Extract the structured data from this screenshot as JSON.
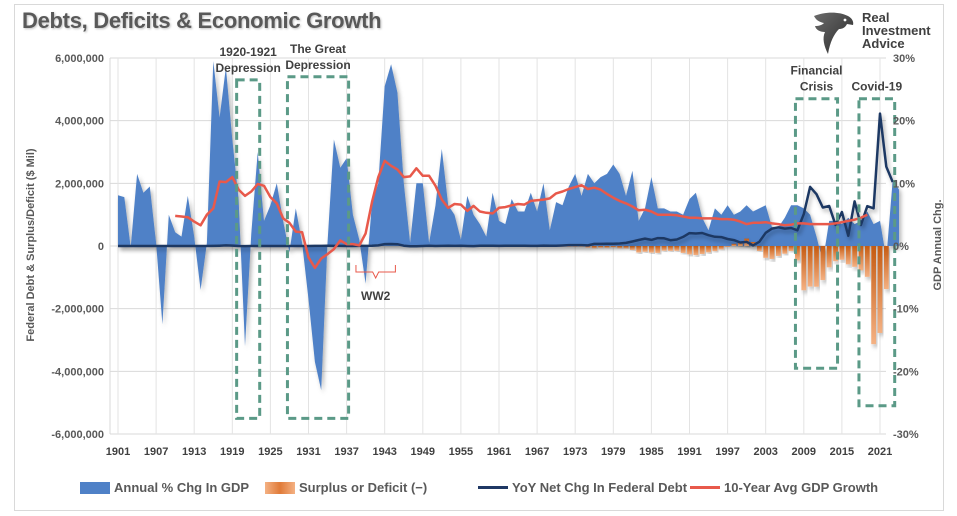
{
  "title": "Debts, Deficits & Economic Growth",
  "logo": {
    "line1": "Real",
    "line2": "Investment",
    "line3": "Advice",
    "icon": "eagle-icon"
  },
  "chart_data": {
    "type": "area",
    "title": "Debts, Deficits & Economic Growth",
    "ylabel_left": "Federal Debt & Surplus/Deficit ($ Mil)",
    "ylabel_right": "GDP Annual Chg.",
    "ylim_left": [
      -6000000,
      6000000
    ],
    "ylim_right": [
      -30,
      30
    ],
    "yticks_left": [
      "6,000,000",
      "4,000,000",
      "2,000,000",
      "0",
      "-2,000,000",
      "-4,000,000",
      "-6,000,000"
    ],
    "yticks_left_values": [
      6000000,
      4000000,
      2000000,
      0,
      -2000000,
      -4000000,
      -6000000
    ],
    "yticks_right": [
      "30%",
      "20%",
      "10%",
      "0%",
      "-10%",
      "-20%",
      "-30%"
    ],
    "yticks_right_values": [
      30,
      20,
      10,
      0,
      -10,
      -20,
      -30
    ],
    "xticks": [
      "1901",
      "1907",
      "1913",
      "1919",
      "1925",
      "1931",
      "1937",
      "1943",
      "1949",
      "1955",
      "1961",
      "1967",
      "1973",
      "1979",
      "1985",
      "1991",
      "1997",
      "2003",
      "2009",
      "2015",
      "2021"
    ],
    "xlim": [
      1901,
      2022
    ],
    "grid": true,
    "legend_position": "bottom",
    "series": [
      {
        "name": "Annual % Chg In GDP",
        "type": "area",
        "axis": "right",
        "color": "#4f81c7",
        "start_year": 1901,
        "values": [
          8.1,
          7.8,
          -0.2,
          11.5,
          8.5,
          9.5,
          0.5,
          -12.5,
          5.0,
          2.2,
          1.5,
          8.0,
          1.5,
          -7.0,
          0.5,
          29.5,
          20.5,
          28.5,
          17.0,
          7.5,
          -16.0,
          2.0,
          15.0,
          4.0,
          6.5,
          10.0,
          4.0,
          -1.0,
          6.0,
          0.5,
          -8.5,
          -18.5,
          -23.0,
          0.5,
          17.0,
          12.5,
          14.0,
          5.0,
          1.0,
          -6.0,
          7.0,
          10.0,
          25.5,
          29.0,
          24.5,
          10.0,
          0.5,
          10.0,
          10.0,
          0.5,
          6.5,
          15.5,
          6.5,
          5.0,
          1.0,
          8.0,
          5.0,
          3.5,
          1.5,
          8.5,
          4.0,
          3.5,
          7.5,
          5.5,
          5.5,
          8.5,
          5.5,
          10.0,
          2.5,
          7.0,
          6.5,
          9.5,
          11.5,
          8.0,
          11.5,
          10.0,
          11.0,
          11.5,
          13.0,
          11.5,
          8.0,
          12.0,
          4.0,
          6.0,
          11.0,
          6.0,
          6.0,
          5.5,
          5.5,
          5.0,
          7.5,
          8.5,
          4.5,
          2.5,
          6.0,
          5.0,
          6.5,
          5.0,
          5.5,
          6.5,
          5.5,
          6.0,
          6.5,
          3.0,
          3.0,
          4.5,
          6.5,
          6.5,
          6.0,
          5.0,
          1.5,
          -2.5,
          4.0,
          4.0,
          3.5,
          4.5,
          3.5,
          4.0,
          5.5,
          3.5,
          4.0,
          -2.0,
          10.5,
          9.0
        ]
      },
      {
        "name": "Surplus or Deficit (−)",
        "type": "bar",
        "axis": "left",
        "color": "#ed7d31",
        "start_year": 1960,
        "values": [
          0,
          -3000,
          0,
          -7000,
          -5000,
          -1000,
          -4000,
          -9000,
          -25000,
          3000,
          -3000,
          -23000,
          -23000,
          -15000,
          -6000,
          -53000,
          -74000,
          -54000,
          -59000,
          -41000,
          -74000,
          -79000,
          -128000,
          -208000,
          -185000,
          -212000,
          -221000,
          -150000,
          -155000,
          -153000,
          -221000,
          -269000,
          -290000,
          -255000,
          -203000,
          -164000,
          -107000,
          -22000,
          69000,
          126000,
          236000,
          128000,
          -158000,
          -378000,
          -413000,
          -318000,
          -248000,
          -161000,
          -459000,
          -1413000,
          -1294000,
          -1300000,
          -1087000,
          -680000,
          -485000,
          -439000,
          -585000,
          -665000,
          -779000,
          -984000,
          -3132000,
          -2775000,
          -1375000
        ]
      },
      {
        "name": "YoY Net Chg In Federal Debt",
        "type": "line",
        "axis": "left",
        "color": "#1f3864",
        "start_year": 1901,
        "values": [
          0,
          0,
          0,
          0,
          0,
          0,
          0,
          0,
          0,
          0,
          0,
          0,
          0,
          0,
          0,
          2000,
          10000,
          20000,
          12000,
          -1000,
          -2000,
          -1000,
          -1000,
          -1000,
          -1000,
          -1000,
          -1000,
          -1000,
          -1000,
          -1000,
          0,
          3000,
          3000,
          6000,
          4000,
          4000,
          1000,
          1000,
          3000,
          3000,
          6000,
          20000,
          60000,
          64000,
          58000,
          11000,
          -11000,
          -5000,
          1000,
          5000,
          -1000,
          4000,
          8000,
          4000,
          5000,
          -1000,
          -3000,
          6000,
          5000,
          9000,
          2000,
          8000,
          9000,
          7000,
          6000,
          4000,
          3000,
          14000,
          7000,
          5000,
          17000,
          28000,
          30000,
          30000,
          20000,
          67000,
          68000,
          70000,
          73000,
          80000,
          100000,
          144000,
          193000,
          235000,
          196000,
          253000,
          246000,
          186000,
          209000,
          292000,
          412000,
          399000,
          414000,
          346000,
          293000,
          283000,
          222000,
          189000,
          113000,
          130000,
          18000,
          133000,
          420000,
          555000,
          596000,
          554000,
          574000,
          500000,
          1017000,
          1885000,
          1652000,
          1228000,
          1276000,
          672000,
          1086000,
          327000,
          1423000,
          671000,
          1271000,
          1202000,
          4226000,
          2530000,
          2042000
        ]
      },
      {
        "name": "10-Year Avg GDP Growth",
        "type": "line",
        "axis": "right",
        "color": "#e8594b",
        "start_year": 1910,
        "values": [
          4.8,
          4.7,
          4.6,
          3.9,
          3.3,
          5.0,
          6.0,
          10.3,
          10.2,
          11.0,
          9.0,
          8.0,
          8.7,
          9.9,
          9.6,
          7.8,
          6.8,
          4.4,
          3.7,
          2.3,
          2.2,
          -1.8,
          -3.5,
          -2.0,
          -1.3,
          -0.5,
          0.9,
          0.3,
          0.3,
          0.1,
          2.0,
          7.0,
          11.0,
          13.6,
          12.8,
          12.2,
          11.0,
          11.1,
          12.4,
          11.2,
          11.2,
          9.6,
          7.4,
          6.1,
          6.7,
          6.6,
          5.6,
          6.4,
          5.5,
          5.3,
          5.2,
          6.1,
          6.2,
          6.5,
          6.7,
          6.6,
          7.2,
          7.3,
          7.4,
          7.6,
          8.4,
          8.7,
          9.1,
          9.4,
          9.7,
          9.1,
          9.3,
          9.0,
          8.3,
          7.7,
          7.2,
          6.8,
          6.3,
          5.7,
          5.8,
          5.5,
          5.0,
          5.0,
          5.0,
          4.9,
          4.7,
          4.5,
          4.5,
          4.4,
          4.4,
          4.4,
          4.3,
          4.3,
          4.2,
          3.9,
          3.5,
          3.7,
          3.7,
          3.8,
          3.6,
          3.5,
          3.3,
          3.4,
          3.6,
          3.6,
          3.5,
          3.5,
          3.5,
          3.5,
          3.6,
          3.8,
          4.0,
          4.2,
          4.5,
          5.0
        ]
      }
    ],
    "annotations": [
      {
        "label": "1920-1921\nDepression",
        "line1": "1920-1921",
        "line2": "Depression",
        "box_years": [
          1920,
          1923
        ],
        "box_right_pct": [
          26.5,
          -27.5
        ]
      },
      {
        "label": "The Great\nDepression",
        "line1": "The Great",
        "line2": "Depression",
        "box_years": [
          1928,
          1937
        ],
        "box_right_pct": [
          27,
          -27.5
        ]
      },
      {
        "label": "WW2",
        "bracket_years": [
          1938,
          1945
        ]
      },
      {
        "label": "Financial\nCrisis",
        "line1": "Financial",
        "line2": "Crisis",
        "box_years": [
          2008,
          2014
        ],
        "box_right_pct": [
          23.5,
          -19.5
        ]
      },
      {
        "label": "Covid-19",
        "box_years": [
          2018,
          2023
        ],
        "box_right_pct": [
          23.5,
          -25.5
        ]
      }
    ]
  },
  "legend": [
    {
      "label": "Annual % Chg In GDP",
      "kind": "box",
      "color": "#4f81c7"
    },
    {
      "label": "Surplus or Deficit (−)",
      "kind": "box",
      "color": "#ed7d31"
    },
    {
      "label": "YoY Net Chg In Federal Debt",
      "kind": "line",
      "color": "#1f3864"
    },
    {
      "label": "10-Year Avg GDP Growth",
      "kind": "line",
      "color": "#e8594b"
    }
  ]
}
